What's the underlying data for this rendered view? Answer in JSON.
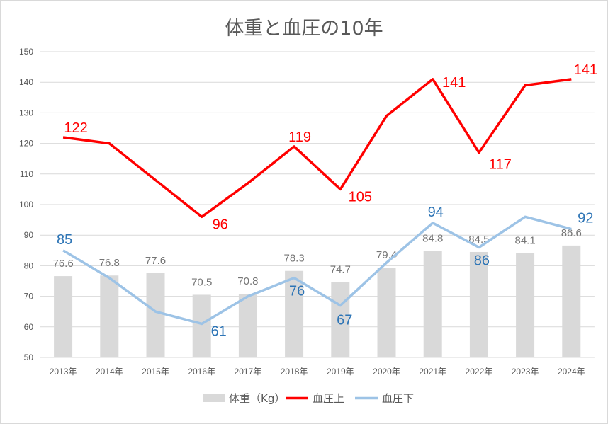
{
  "chart_data": {
    "type": "bar+line",
    "title": "体重と血圧の10年",
    "categories": [
      "2013年",
      "2014年",
      "2015年",
      "2016年",
      "2017年",
      "2018年",
      "2019年",
      "2020年",
      "2021年",
      "2022年",
      "2023年",
      "2024年"
    ],
    "ylim": [
      50,
      150
    ],
    "yticks": [
      50,
      60,
      70,
      80,
      90,
      100,
      110,
      120,
      130,
      140,
      150
    ],
    "grid": true,
    "legend_position": "bottom",
    "series": [
      {
        "name": "体重（Kg）",
        "type": "bar",
        "color": "#d9d9d9",
        "values": [
          76.6,
          76.8,
          77.6,
          70.5,
          70.8,
          78.3,
          74.7,
          79.4,
          84.8,
          84.5,
          84.1,
          86.6
        ],
        "labels": [
          "76.6",
          "76.8",
          "77.6",
          "70.5",
          "70.8",
          "78.3",
          "74.7",
          "79.4",
          "84.8",
          "84.5",
          "84.1",
          "86.6"
        ]
      },
      {
        "name": "血圧上",
        "type": "line",
        "color": "#ff0000",
        "values": [
          122,
          120,
          108,
          96,
          107,
          119,
          105,
          129,
          141,
          117,
          139,
          141
        ],
        "labels": [
          "122",
          null,
          null,
          "96",
          null,
          "119",
          "105",
          null,
          "141",
          "117",
          null,
          "141"
        ]
      },
      {
        "name": "血圧下",
        "type": "line",
        "color": "#9dc3e6",
        "values": [
          85,
          76,
          65,
          61,
          70,
          76,
          67,
          81,
          94,
          86,
          96,
          92
        ],
        "labels": [
          "85",
          null,
          null,
          "61",
          null,
          "76",
          "67",
          null,
          "94",
          "86",
          null,
          "92"
        ]
      }
    ]
  }
}
